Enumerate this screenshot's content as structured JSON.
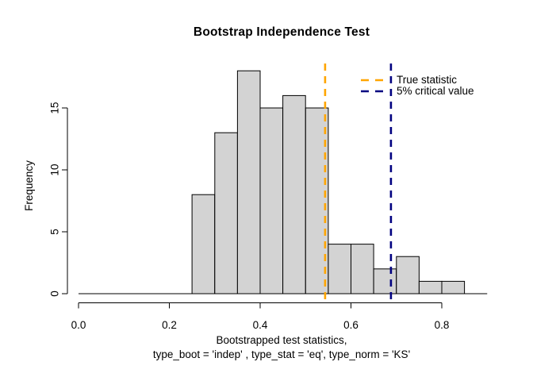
{
  "figure": {
    "title": "Bootstrap Independence Test",
    "ylabel": "Frequency",
    "xlabel_line1": "Bootstrapped test statistics,",
    "xlabel_line2": "type_boot = 'indep' , type_stat = 'eq', type_norm = 'KS'"
  },
  "legend": {
    "items": [
      {
        "label": "True statistic",
        "color": "#FFA500"
      },
      {
        "label": "5% critical value",
        "color": "#000080"
      }
    ]
  },
  "chart_data": {
    "type": "bar",
    "subtype": "histogram",
    "title": "Bootstrap Independence Test",
    "xlabel": "Bootstrapped test statistics, type_boot = 'indep' , type_stat = 'eq', type_norm = 'KS'",
    "ylabel": "Frequency",
    "bin_edges": [
      0.25,
      0.3,
      0.35,
      0.4,
      0.45,
      0.5,
      0.55,
      0.6,
      0.65,
      0.7,
      0.75,
      0.8,
      0.85
    ],
    "counts": [
      8,
      13,
      18,
      15,
      16,
      15,
      4,
      4,
      2,
      3,
      1,
      1
    ],
    "total_samples": 100,
    "xlim": [
      0.0,
      0.9
    ],
    "ylim": [
      0,
      18
    ],
    "x_tick_labels": [
      "0.0",
      "0.2",
      "0.4",
      "0.6",
      "0.8"
    ],
    "x_tick_values": [
      0.0,
      0.2,
      0.4,
      0.6,
      0.8
    ],
    "y_tick_labels": [
      "0",
      "5",
      "10",
      "15"
    ],
    "y_tick_values": [
      0,
      5,
      10,
      15
    ],
    "bar_fill": "#D3D3D3",
    "bar_stroke": "#000000",
    "grid": false,
    "legend_position": "top-right",
    "vlines": [
      {
        "x": 0.543,
        "label": "True statistic",
        "color": "#FFA500",
        "style": "dashed"
      },
      {
        "x": 0.688,
        "label": "5% critical value",
        "color": "#000080",
        "style": "dashed"
      }
    ]
  }
}
